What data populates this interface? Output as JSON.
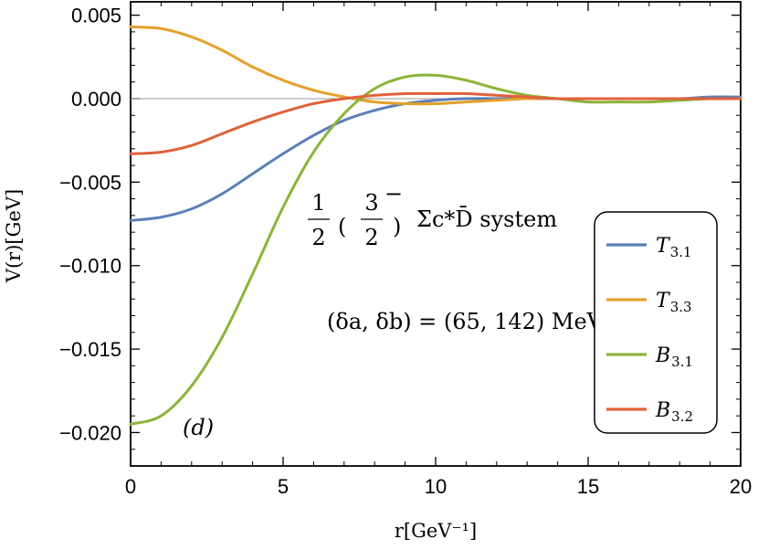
{
  "chart_data": {
    "type": "line",
    "xlabel": "r[GeV⁻¹]",
    "ylabel": "V(r)[GeV]",
    "xlim": [
      0,
      20
    ],
    "ylim": [
      -0.022,
      0.0058
    ],
    "xticks": [
      0,
      5,
      10,
      15,
      20
    ],
    "xtick_labels": [
      "0",
      "5",
      "10",
      "15",
      "20"
    ],
    "yticks": [
      0.005,
      0.0,
      -0.005,
      -0.01,
      -0.015,
      -0.02
    ],
    "ytick_labels": [
      "0.005",
      "0.000",
      "−0.005",
      "−0.010",
      "−0.015",
      "−0.020"
    ],
    "grid": false,
    "legend_placement": "bottom-right",
    "annotations": {
      "system_fraction": "1/2",
      "system_jp": "3/2",
      "system_parity": "−",
      "system_text": "Σc*D̄ system",
      "deltas": "(δa, δb) = (65, 142) MeV",
      "panel": "(d)"
    },
    "series": [
      {
        "name": "T3.1",
        "label_main": "T",
        "label_sub": "3.1",
        "color": "#5b7fb8",
        "x": [
          0,
          1,
          2,
          3,
          4,
          5,
          6,
          7,
          8,
          9,
          10,
          11,
          12,
          13,
          14,
          15,
          16,
          17,
          18,
          19,
          20
        ],
        "y": [
          -0.0073,
          -0.0071,
          -0.0066,
          -0.0057,
          -0.0045,
          -0.0033,
          -0.0022,
          -0.0013,
          -0.0007,
          -0.0003,
          -0.0001,
          0.0,
          0.0,
          0.0,
          0.0,
          0.0,
          0.0,
          0.0,
          0.0,
          0.0001,
          0.0001
        ]
      },
      {
        "name": "T3.3",
        "label_main": "T",
        "label_sub": "3.3",
        "color": "#e4a12a",
        "x": [
          0,
          1,
          2,
          3,
          4,
          5,
          6,
          7,
          8,
          9,
          10,
          11,
          12,
          13,
          14,
          15,
          16,
          17,
          18,
          19,
          20
        ],
        "y": [
          0.0043,
          0.0042,
          0.0037,
          0.0029,
          0.0019,
          0.0011,
          0.0005,
          0.0001,
          -0.0002,
          -0.0003,
          -0.0003,
          -0.0002,
          -0.0001,
          0.0,
          0.0,
          0.0,
          0.0,
          0.0,
          0.0,
          0.0,
          0.0
        ]
      },
      {
        "name": "B3.1",
        "label_main": "B",
        "label_sub": "3.1",
        "color": "#8cb43a",
        "x": [
          0,
          1,
          2,
          3,
          4,
          5,
          6,
          7,
          8,
          9,
          10,
          11,
          12,
          13,
          14,
          15,
          16,
          17,
          18,
          19,
          20
        ],
        "y": [
          -0.0195,
          -0.019,
          -0.0172,
          -0.0143,
          -0.0105,
          -0.0065,
          -0.0032,
          -0.0009,
          0.0006,
          0.0013,
          0.0014,
          0.0011,
          0.0006,
          0.0002,
          0.0,
          -0.0002,
          -0.0002,
          -0.0002,
          -0.0001,
          0.0,
          0.0
        ]
      },
      {
        "name": "B3.2",
        "label_main": "B",
        "label_sub": "3.2",
        "color": "#e0623a",
        "x": [
          0,
          1,
          2,
          3,
          4,
          5,
          6,
          7,
          8,
          9,
          10,
          11,
          12,
          13,
          14,
          15,
          16,
          17,
          18,
          19,
          20
        ],
        "y": [
          -0.0033,
          -0.0032,
          -0.0028,
          -0.0021,
          -0.0014,
          -0.0008,
          -0.0003,
          0.0,
          0.0002,
          0.0003,
          0.0003,
          0.0003,
          0.0002,
          0.0001,
          0.0,
          0.0,
          0.0,
          0.0,
          0.0,
          0.0,
          0.0
        ]
      }
    ]
  }
}
